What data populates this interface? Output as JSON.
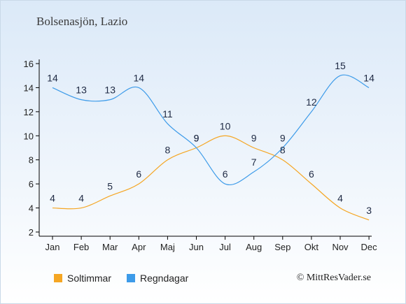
{
  "title": "Bolsenasjön, Lazio",
  "copyright": "© MittResVader.se",
  "chart_data": {
    "type": "line",
    "categories": [
      "Jan",
      "Feb",
      "Mar",
      "Apr",
      "Maj",
      "Jun",
      "Jul",
      "Aug",
      "Sep",
      "Okt",
      "Nov",
      "Dec"
    ],
    "ylim": [
      2,
      16
    ],
    "yticks": [
      2,
      4,
      6,
      8,
      10,
      12,
      14,
      16
    ],
    "grid": false,
    "legend_position": "bottom-left",
    "series": [
      {
        "name": "Soltimmar",
        "color": "#f5a623",
        "values": [
          4,
          4,
          5,
          6,
          8,
          9,
          10,
          9,
          8,
          6,
          4,
          3
        ]
      },
      {
        "name": "Regndagar",
        "color": "#3d9be9",
        "values": [
          14,
          13,
          13,
          14,
          11,
          9,
          6,
          7,
          9,
          12,
          15,
          14
        ]
      }
    ]
  }
}
